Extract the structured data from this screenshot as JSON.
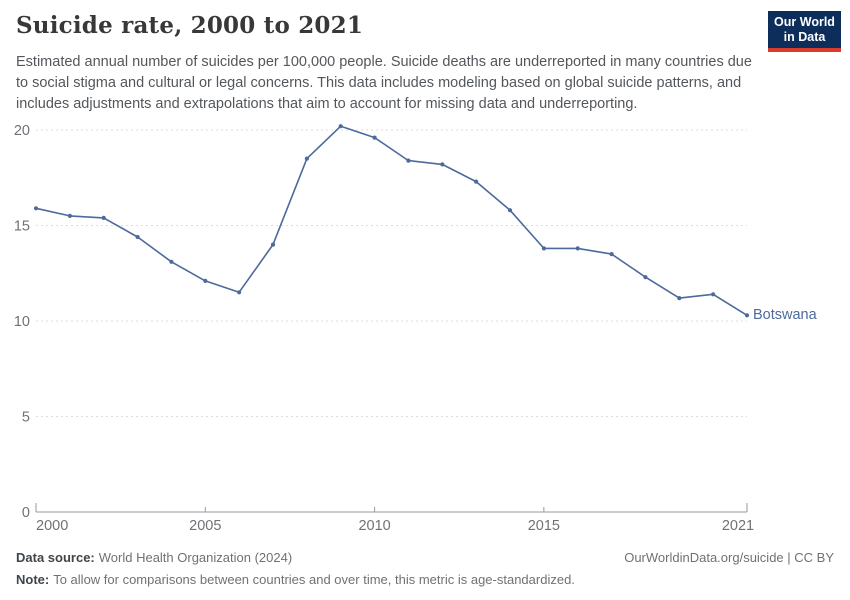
{
  "header": {
    "title": "Suicide rate, 2000 to 2021",
    "subtitle": "Estimated annual number of suicides per 100,000 people. Suicide deaths are underreported in many countries due to social stigma and cultural or legal concerns. This data includes modeling based on global suicide patterns, and includes adjustments and extrapolations that aim to account for missing data and underreporting.",
    "logo": {
      "line1": "Our World",
      "line2": "in Data",
      "bg_color": "#0d2e5b",
      "accent_color": "#d93a2b"
    }
  },
  "chart_data": {
    "type": "line",
    "title": "Suicide rate, 2000 to 2021",
    "x": [
      2000,
      2001,
      2002,
      2003,
      2004,
      2005,
      2006,
      2007,
      2008,
      2009,
      2010,
      2011,
      2012,
      2013,
      2014,
      2015,
      2016,
      2017,
      2018,
      2019,
      2020,
      2021
    ],
    "series": [
      {
        "name": "Botswana",
        "color": "#4c6a9c",
        "values": [
          15.9,
          15.5,
          15.4,
          14.4,
          13.1,
          12.1,
          11.5,
          14.0,
          18.5,
          20.2,
          19.6,
          18.4,
          18.2,
          17.3,
          15.8,
          13.8,
          13.8,
          13.5,
          12.3,
          11.2,
          11.4,
          10.3
        ]
      }
    ],
    "ylim": [
      0,
      20
    ],
    "yticks": [
      0,
      5,
      10,
      15,
      20
    ],
    "xticks": [
      2000,
      2005,
      2010,
      2015,
      2021
    ],
    "grid": "horizontal-dashed",
    "legend_position": "end-of-line-label",
    "axis_color": "#9a9a9a",
    "grid_color": "#dcdcdc",
    "tick_label_color": "#6e7276"
  },
  "footer": {
    "datasource_label": "Data source:",
    "datasource_value": "World Health Organization (2024)",
    "license": "OurWorldinData.org/suicide | CC BY",
    "note_label": "Note:",
    "note_value": "To allow for comparisons between countries and over time, this metric is age-standardized."
  }
}
